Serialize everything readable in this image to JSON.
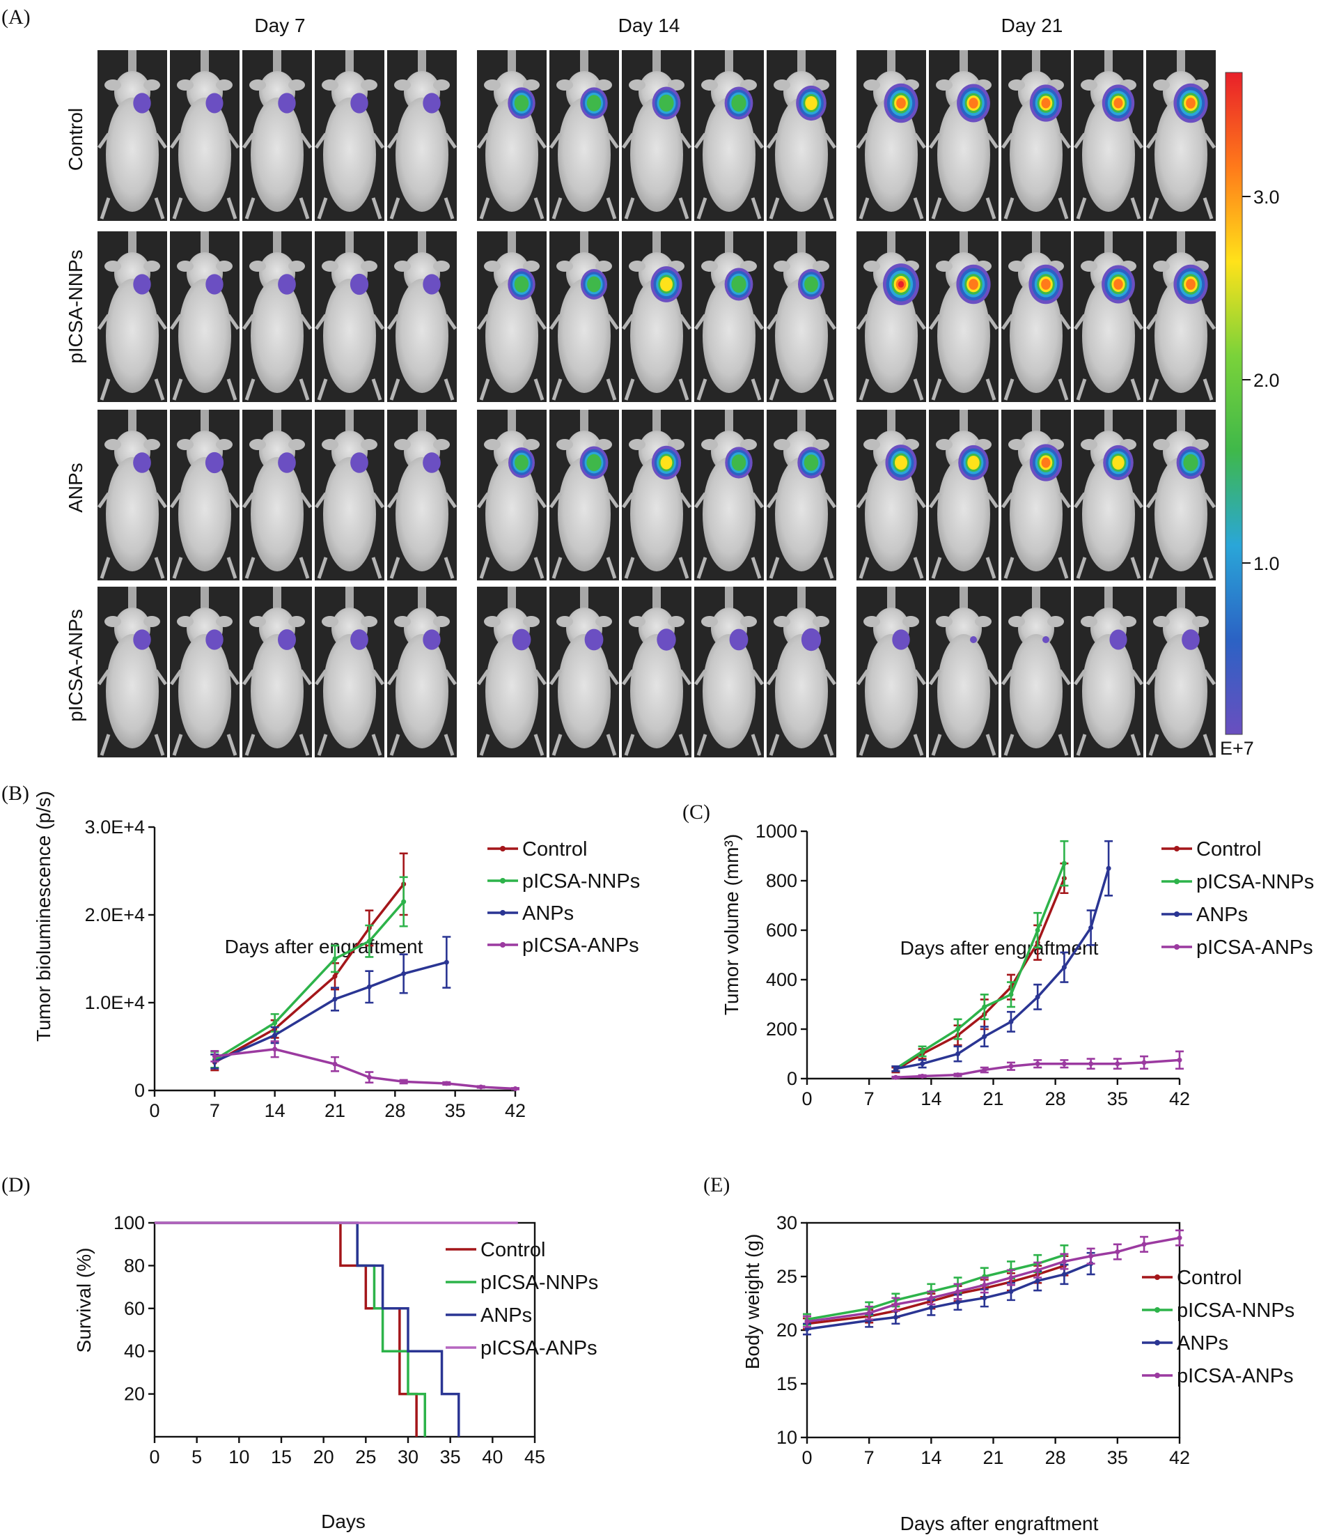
{
  "panel_a": {
    "label": "(A)",
    "days": [
      "Day 7",
      "Day 14",
      "Day 21"
    ],
    "groups": [
      "Control",
      "pICSA-NNPs",
      "ANPs",
      "pICSA-ANPs"
    ],
    "mice_per_group": 5,
    "colorbar": {
      "ticks": [
        "3.0",
        "2.0",
        "1.0"
      ],
      "unit": "E+7",
      "colors": [
        "#e8202a",
        "#ff7a1a",
        "#ffe21a",
        "#7ad23a",
        "#3fb84a",
        "#2aa6d8",
        "#2b62c4",
        "#6a4fbf"
      ]
    },
    "signal_levels": [
      [
        [
          0.05,
          0.04,
          0.05,
          0.05,
          0.05
        ],
        [
          0.55,
          0.55,
          0.6,
          0.6,
          0.7
        ],
        [
          0.9,
          0.85,
          0.8,
          0.8,
          0.9
        ]
      ],
      [
        [
          0.05,
          0.05,
          0.06,
          0.08,
          0.05
        ],
        [
          0.55,
          0.5,
          0.75,
          0.6,
          0.5
        ],
        [
          1.0,
          0.9,
          0.9,
          0.85,
          0.9
        ]
      ],
      [
        [
          0.06,
          0.08,
          0.06,
          0.06,
          0.06
        ],
        [
          0.5,
          0.6,
          0.65,
          0.55,
          0.55
        ],
        [
          0.75,
          0.7,
          0.8,
          0.7,
          0.6
        ]
      ],
      [
        [
          0.05,
          0.05,
          0.07,
          0.06,
          0.05
        ],
        [
          0.1,
          0.1,
          0.12,
          0.1,
          0.15
        ],
        [
          0.05,
          0.02,
          0.02,
          0.04,
          0.06
        ]
      ]
    ]
  },
  "chart_data": [
    {
      "id": "B",
      "panel_label": "(B)",
      "type": "line",
      "xlabel": "Days after engraftment",
      "ylabel": "Tumor bioluminescence (p/s)",
      "xlim": [
        0,
        42
      ],
      "ylim": [
        0,
        30000
      ],
      "xticks": [
        0,
        7,
        14,
        21,
        28,
        35,
        42
      ],
      "xtick_labels": [
        "0",
        "7",
        "14",
        "21",
        "28",
        "35",
        "42"
      ],
      "yticks": [
        0,
        10000,
        20000,
        30000
      ],
      "ytick_labels": [
        "0",
        "1.0E+4",
        "2.0E+4",
        "3.0E+4"
      ],
      "legend": "top-right",
      "series": [
        {
          "name": "Control",
          "color": "#a4161a",
          "x": [
            7,
            14,
            21,
            25,
            29
          ],
          "y": [
            3200,
            7000,
            13000,
            18500,
            23500
          ],
          "err": [
            900,
            1000,
            1500,
            2000,
            3500
          ]
        },
        {
          "name": "pICSA-NNPs",
          "color": "#2db34a",
          "x": [
            7,
            14,
            21,
            25,
            29
          ],
          "y": [
            3500,
            7700,
            15000,
            17000,
            21500
          ],
          "err": [
            900,
            1000,
            1500,
            1800,
            2800
          ]
        },
        {
          "name": "ANPs",
          "color": "#2a3593",
          "x": [
            7,
            14,
            21,
            25,
            29,
            34
          ],
          "y": [
            3300,
            6300,
            10400,
            11800,
            13300,
            14600
          ],
          "err": [
            800,
            900,
            1300,
            1800,
            2200,
            2900
          ]
        },
        {
          "name": "pICSA-ANPs",
          "color": "#9b3aa0",
          "x": [
            7,
            14,
            21,
            25,
            29,
            34,
            38,
            42
          ],
          "y": [
            3900,
            4700,
            3000,
            1500,
            1000,
            800,
            400,
            200
          ],
          "err": [
            600,
            900,
            800,
            600,
            200,
            150,
            100,
            80
          ]
        }
      ]
    },
    {
      "id": "C",
      "panel_label": "(C)",
      "type": "line",
      "xlabel": "Days after engraftment",
      "ylabel": "Tumor volume (mm³)",
      "xlim": [
        0,
        42
      ],
      "ylim": [
        0,
        1000
      ],
      "xticks": [
        0,
        7,
        14,
        21,
        28,
        35,
        42
      ],
      "xtick_labels": [
        "0",
        "7",
        "14",
        "21",
        "28",
        "35",
        "42"
      ],
      "yticks": [
        0,
        200,
        400,
        600,
        800,
        1000
      ],
      "ytick_labels": [
        "0",
        "200",
        "400",
        "600",
        "800",
        "1000"
      ],
      "legend": "top-right",
      "series": [
        {
          "name": "Control",
          "color": "#a4161a",
          "x": [
            10,
            13,
            17,
            20,
            23,
            26,
            29
          ],
          "y": [
            35,
            100,
            175,
            260,
            370,
            550,
            810
          ],
          "err": [
            10,
            20,
            40,
            60,
            50,
            70,
            60
          ]
        },
        {
          "name": "pICSA-NNPs",
          "color": "#2db34a",
          "x": [
            10,
            13,
            17,
            20,
            23,
            26,
            29
          ],
          "y": [
            40,
            110,
            200,
            290,
            340,
            600,
            870
          ],
          "err": [
            10,
            20,
            40,
            50,
            50,
            70,
            90
          ]
        },
        {
          "name": "ANPs",
          "color": "#2a3593",
          "x": [
            10,
            13,
            17,
            20,
            23,
            26,
            29,
            32,
            34
          ],
          "y": [
            40,
            60,
            100,
            170,
            230,
            330,
            450,
            610,
            850
          ],
          "err": [
            10,
            15,
            30,
            40,
            40,
            50,
            60,
            70,
            110
          ]
        },
        {
          "name": "pICSA-ANPs",
          "color": "#9b3aa0",
          "x": [
            10,
            13,
            17,
            20,
            23,
            26,
            29,
            32,
            35,
            38,
            42
          ],
          "y": [
            5,
            10,
            15,
            35,
            50,
            60,
            60,
            60,
            60,
            65,
            75
          ],
          "err": [
            3,
            4,
            5,
            10,
            15,
            15,
            15,
            20,
            20,
            25,
            35
          ]
        }
      ]
    },
    {
      "id": "D",
      "panel_label": "(D)",
      "type": "line",
      "style": "step",
      "xlabel": "Days",
      "ylabel": "Survival (%)",
      "xlim": [
        0,
        45
      ],
      "ylim": [
        0,
        100
      ],
      "xticks": [
        0,
        5,
        10,
        15,
        20,
        25,
        30,
        35,
        40,
        45
      ],
      "xtick_labels": [
        "0",
        "5",
        "10",
        "15",
        "20",
        "25",
        "30",
        "35",
        "40",
        "45"
      ],
      "yticks": [
        20,
        40,
        60,
        80,
        100
      ],
      "ytick_labels": [
        "20",
        "40",
        "60",
        "80",
        "100"
      ],
      "legend": "right",
      "series": [
        {
          "name": "Control",
          "color": "#a4161a",
          "x": [
            0,
            22,
            25,
            27,
            29,
            31
          ],
          "y": [
            100,
            80,
            60,
            60,
            20,
            0
          ]
        },
        {
          "name": "pICSA-NNPs",
          "color": "#2db34a",
          "x": [
            0,
            24,
            26,
            27,
            30,
            32
          ],
          "y": [
            100,
            80,
            60,
            40,
            20,
            0
          ]
        },
        {
          "name": "ANPs",
          "color": "#2a3593",
          "x": [
            0,
            24,
            27,
            28,
            30,
            34,
            36
          ],
          "y": [
            100,
            80,
            60,
            60,
            40,
            20,
            0
          ]
        },
        {
          "name": "pICSA-ANPs",
          "color": "#b666c0",
          "x": [
            0,
            43
          ],
          "y": [
            100,
            100
          ]
        }
      ]
    },
    {
      "id": "E",
      "panel_label": "(E)",
      "type": "line",
      "xlabel": "Days after engraftment",
      "ylabel": "Body weight (g)",
      "xlim": [
        0,
        42
      ],
      "ylim": [
        10,
        30
      ],
      "xticks": [
        0,
        7,
        14,
        21,
        28,
        35,
        42
      ],
      "xtick_labels": [
        "0",
        "7",
        "14",
        "21",
        "28",
        "35",
        "42"
      ],
      "yticks": [
        10,
        15,
        20,
        25,
        30
      ],
      "ytick_labels": [
        "10",
        "15",
        "20",
        "25",
        "30"
      ],
      "legend": "right",
      "series": [
        {
          "name": "Control",
          "color": "#a4161a",
          "x": [
            0,
            7,
            10,
            14,
            17,
            20,
            23,
            26,
            29
          ],
          "y": [
            20.6,
            21.3,
            21.8,
            22.7,
            23.4,
            23.9,
            24.5,
            25.2,
            26.0
          ],
          "err": [
            0.5,
            0.6,
            0.6,
            0.7,
            0.7,
            0.8,
            0.8,
            0.8,
            0.9
          ]
        },
        {
          "name": "pICSA-NNPs",
          "color": "#2db34a",
          "x": [
            0,
            7,
            10,
            14,
            17,
            20,
            23,
            26,
            29
          ],
          "y": [
            21.0,
            22.0,
            22.8,
            23.6,
            24.2,
            25.0,
            25.6,
            26.2,
            27.0
          ],
          "err": [
            0.5,
            0.6,
            0.6,
            0.7,
            0.7,
            0.8,
            0.8,
            0.8,
            0.9
          ]
        },
        {
          "name": "ANPs",
          "color": "#2a3593",
          "x": [
            0,
            7,
            10,
            14,
            17,
            20,
            23,
            26,
            29,
            32
          ],
          "y": [
            20.1,
            20.9,
            21.2,
            22.1,
            22.6,
            23.0,
            23.6,
            24.6,
            25.2,
            26.2
          ],
          "err": [
            0.5,
            0.6,
            0.6,
            0.7,
            0.7,
            0.8,
            0.8,
            0.9,
            0.9,
            1.0
          ]
        },
        {
          "name": "pICSA-ANPs",
          "color": "#9b3aa0",
          "x": [
            0,
            7,
            10,
            14,
            17,
            20,
            23,
            26,
            29,
            32,
            35,
            38,
            42
          ],
          "y": [
            20.8,
            21.6,
            22.4,
            23.0,
            23.6,
            24.2,
            24.9,
            25.6,
            26.4,
            26.9,
            27.3,
            28.0,
            28.6
          ],
          "err": [
            0.5,
            0.6,
            0.6,
            0.6,
            0.7,
            0.7,
            0.7,
            0.7,
            0.7,
            0.7,
            0.7,
            0.7,
            0.7
          ]
        }
      ]
    }
  ]
}
